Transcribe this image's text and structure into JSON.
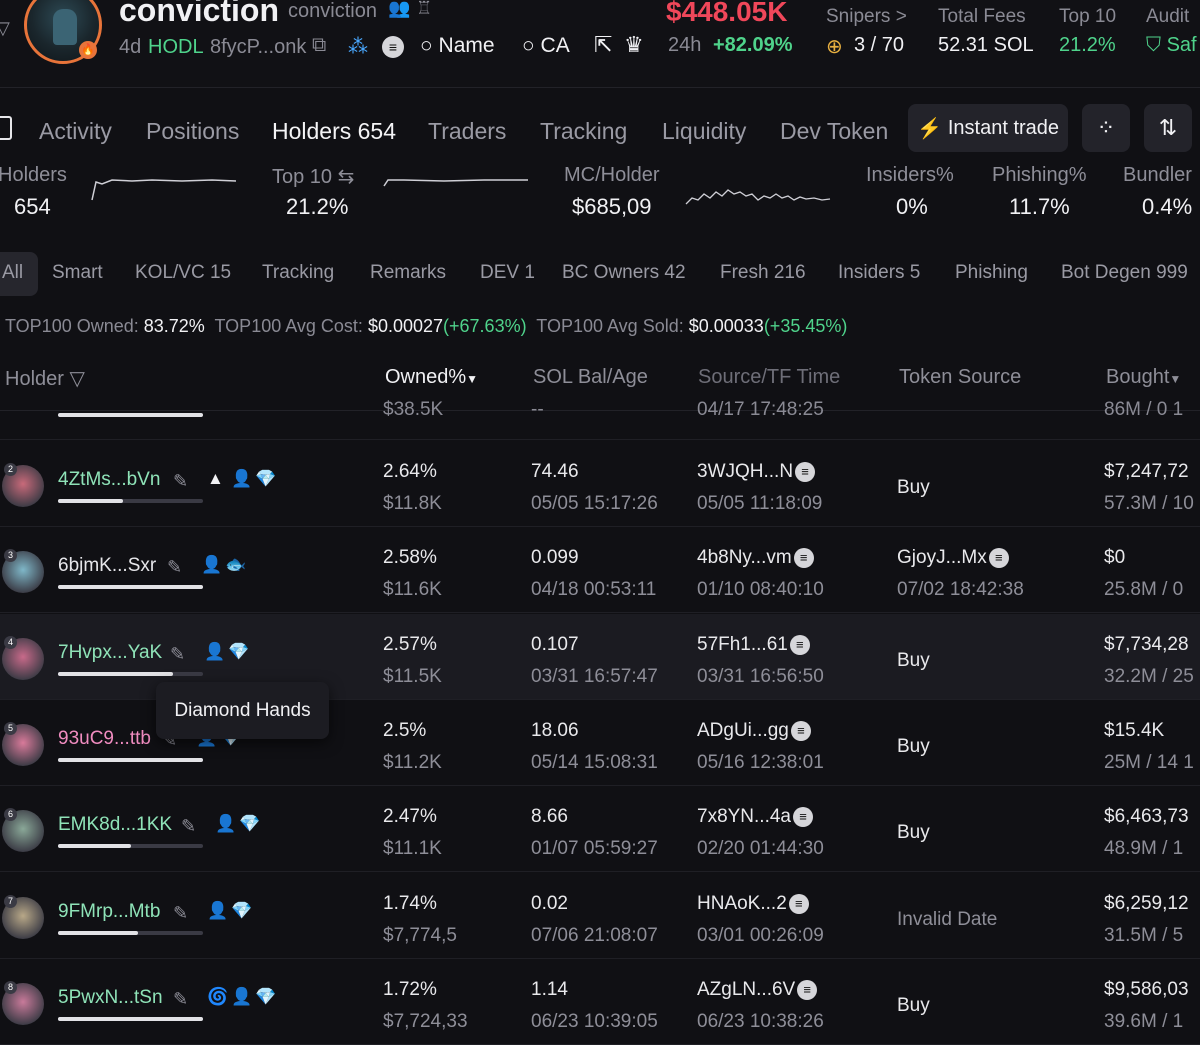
{
  "header": {
    "token_name": "conviction",
    "token_symbol": "conviction",
    "age": "4d",
    "hodl_label": "HODL",
    "contract_short": "8fycP...onk",
    "search_name_label": "Name",
    "search_ca_label": "CA",
    "market_cap": "$448.05K",
    "change_24h_label": "24h",
    "change_24h_value": "+82.09%",
    "snipers_label": "Snipers >",
    "snipers_value": "3 / 70",
    "total_fees_label": "Total Fees",
    "total_fees_value": "52.31 SOL",
    "top10_label": "Top 10",
    "top10_value": "21.2%",
    "audit_label": "Audit",
    "audit_value": "Saf"
  },
  "tabs": [
    {
      "label": "Activity"
    },
    {
      "label": "Positions"
    },
    {
      "label": "Holders 654"
    },
    {
      "label": "Traders"
    },
    {
      "label": "Tracking"
    },
    {
      "label": "Liquidity"
    },
    {
      "label": "Dev Token"
    }
  ],
  "actions": {
    "instant_trade": "Instant trade"
  },
  "stats": {
    "holders_label": "Holders",
    "holders_value": "654",
    "top10_label": "Top 10",
    "top10_value": "21.2%",
    "mc_holder_label": "MC/Holder",
    "mc_holder_value": "$685,09",
    "insiders_label": "Insiders%",
    "insiders_value": "0%",
    "phishing_label": "Phishing%",
    "phishing_value": "11.7%",
    "bundler_label": "Bundler",
    "bundler_value": "0.4%"
  },
  "filters": [
    "All",
    "Smart",
    "KOL/VC 15",
    "Tracking",
    "Remarks",
    "DEV 1",
    "BC Owners 42",
    "Fresh 216",
    "Insiders 5",
    "Phishing",
    "Bot Degen 999"
  ],
  "summary": {
    "owned_label": "TOP100 Owned:",
    "owned_value": "83.72%",
    "avg_cost_label": "TOP100 Avg Cost:",
    "avg_cost_value": "$0.00027",
    "avg_cost_change": "(+67.63%)",
    "avg_sold_label": "TOP100 Avg Sold:",
    "avg_sold_value": "$0.00033",
    "avg_sold_change": "(+35.45%)"
  },
  "columns": {
    "holder": "Holder",
    "owned": "Owned%",
    "sol_bal": "SOL Bal/Age",
    "source": "Source/TF Time",
    "token_source": "Token Source",
    "bought": "Bought"
  },
  "partial_row": {
    "owned_usd": "$38.5K",
    "sol": "--",
    "time": "04/17 17:48:25",
    "bought": "86M / 0 1"
  },
  "rows": [
    {
      "rank": "2",
      "address": "4ZtMs...bVn",
      "owned_pct": "2.64%",
      "owned_usd": "$11.8K",
      "sol_bal": "74.46",
      "age": "05/05 15:17:26",
      "source": "3WJQH...N",
      "tf_time": "05/05 11:18:09",
      "token_source": "Buy",
      "token_source_time": "",
      "bought_usd": "$7,247,72",
      "bought_amt": "57.3M / 10",
      "addr_color": "#8fe3b8",
      "avatar_color": "#c86a7a"
    },
    {
      "rank": "3",
      "address": "6bjmK...Sxr",
      "owned_pct": "2.58%",
      "owned_usd": "$11.6K",
      "sol_bal": "0.099",
      "age": "04/18 00:53:11",
      "source": "4b8Ny...vm",
      "tf_time": "01/10 08:40:10",
      "token_source": "GjoyJ...Mx",
      "token_source_time": "07/02 18:42:38",
      "bought_usd": "$0",
      "bought_amt": "25.8M / 0",
      "addr_color": "#e6e6ea",
      "avatar_color": "#7fb7c8"
    },
    {
      "rank": "4",
      "address": "7Hvpx...YaK",
      "owned_pct": "2.57%",
      "owned_usd": "$11.5K",
      "sol_bal": "0.107",
      "age": "03/31 16:57:47",
      "source": "57Fh1...61",
      "tf_time": "03/31 16:56:50",
      "token_source": "Buy",
      "token_source_time": "",
      "bought_usd": "$7,734,28",
      "bought_amt": "32.2M / 25",
      "addr_color": "#8fe3b8",
      "avatar_color": "#c86a8a"
    },
    {
      "rank": "5",
      "address": "93uC9...ttb",
      "owned_pct": "2.5%",
      "owned_usd": "$11.2K",
      "sol_bal": "18.06",
      "age": "05/14 15:08:31",
      "source": "ADgUi...gg",
      "tf_time": "05/16 12:38:01",
      "token_source": "Buy",
      "token_source_time": "",
      "bought_usd": "$15.4K",
      "bought_amt": "25M / 14 1",
      "addr_color": "#f08cc0",
      "avatar_color": "#d87a9a"
    },
    {
      "rank": "6",
      "address": "EMK8d...1KK",
      "owned_pct": "2.47%",
      "owned_usd": "$11.1K",
      "sol_bal": "8.66",
      "age": "01/07 05:59:27",
      "source": "7x8YN...4a",
      "tf_time": "02/20 01:44:30",
      "token_source": "Buy",
      "token_source_time": "",
      "bought_usd": "$6,463,73",
      "bought_amt": "48.9M / 1",
      "addr_color": "#8fe3b8",
      "avatar_color": "#8aa898"
    },
    {
      "rank": "7",
      "address": "9FMrp...Mtb",
      "owned_pct": "1.74%",
      "owned_usd": "$7,774,5",
      "sol_bal": "0.02",
      "age": "07/06 21:08:07",
      "source": "HNAoK...2",
      "tf_time": "03/01 00:26:09",
      "token_source": "Invalid Date",
      "token_source_time": "",
      "bought_usd": "$6,259,12",
      "bought_amt": "31.5M / 5",
      "addr_color": "#8fe3b8",
      "avatar_color": "#b8a888"
    },
    {
      "rank": "8",
      "address": "5PwxN...tSn",
      "owned_pct": "1.72%",
      "owned_usd": "$7,724,33",
      "sol_bal": "1.14",
      "age": "06/23 10:39:05",
      "source": "AZgLN...6V",
      "tf_time": "06/23 10:38:26",
      "token_source": "Buy",
      "token_source_time": "",
      "bought_usd": "$9,586,03",
      "bought_amt": "39.6M / 1",
      "addr_color": "#8fe3b8",
      "avatar_color": "#c87a9a"
    }
  ],
  "holding_fraction": [
    0.45,
    1.0,
    0.79,
    1.0,
    0.5,
    0.55,
    1.0
  ],
  "tooltip": {
    "text": "Diamond Hands"
  },
  "colors": {
    "accent_green": "#4fd38b",
    "accent_red": "#f0475a",
    "diamond": "#4aa8ff",
    "background": "#101014"
  }
}
